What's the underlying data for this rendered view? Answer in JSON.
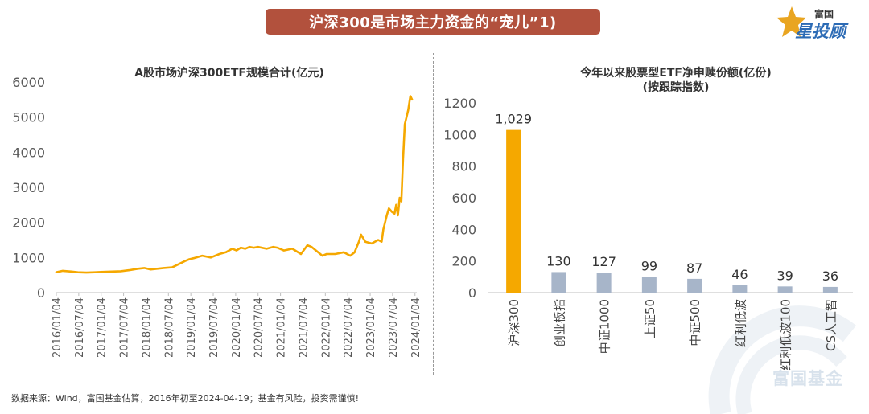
{
  "banner": {
    "title": "沪深300是市场主力资金的“宠儿”1)"
  },
  "logo": {
    "top": "富国",
    "main": "星投顾"
  },
  "watermark": {
    "text": "富国基金"
  },
  "footer": {
    "note": "数据来源：Wind，富国基金估算，2016年初至2024-04-19；基金有风险，投资需谨慎!"
  },
  "colors": {
    "line": "#f5a800",
    "bar_highlight": "#f5a800",
    "bar_other": "#a7b5c9",
    "banner": "#b2513d"
  },
  "chart_data": [
    {
      "type": "line",
      "title": "A股市场沪深300ETF规模合计(亿元)",
      "ylim": [
        0,
        6000
      ],
      "yticks": [
        "0",
        "1000",
        "2000",
        "3000",
        "4000",
        "5000",
        "6000"
      ],
      "xlim": [
        2016.0,
        2024.4
      ],
      "xticks": [
        "2016/01/04",
        "2016/07/04",
        "2017/01/04",
        "2017/07/04",
        "2018/01/04",
        "2018/07/04",
        "2019/01/04",
        "2019/07/04",
        "2020/01/04",
        "2020/07/04",
        "2021/01/04",
        "2021/07/04",
        "2022/01/04",
        "2022/07/04",
        "2023/01/04",
        "2023/07/04",
        "2024/01/04"
      ],
      "x": [
        2016.0,
        2016.15,
        2016.35,
        2016.5,
        2016.7,
        2016.9,
        2017.1,
        2017.3,
        2017.5,
        2017.7,
        2017.9,
        2018.05,
        2018.2,
        2018.35,
        2018.5,
        2018.7,
        2018.9,
        2019.0,
        2019.1,
        2019.2,
        2019.4,
        2019.6,
        2019.8,
        2019.95,
        2020.1,
        2020.2,
        2020.3,
        2020.4,
        2020.5,
        2020.6,
        2020.7,
        2020.9,
        2021.05,
        2021.15,
        2021.3,
        2021.5,
        2021.7,
        2021.85,
        2021.95,
        2022.05,
        2022.2,
        2022.3,
        2022.5,
        2022.7,
        2022.85,
        2022.95,
        2023.05,
        2023.1,
        2023.2,
        2023.35,
        2023.5,
        2023.58,
        2023.62,
        2023.7,
        2023.75,
        2023.82,
        2023.88,
        2023.92,
        2023.96,
        2024.0,
        2024.04,
        2024.08,
        2024.12,
        2024.16,
        2024.2,
        2024.25,
        2024.29
      ],
      "values": [
        580,
        620,
        600,
        580,
        570,
        580,
        590,
        600,
        610,
        640,
        680,
        700,
        660,
        680,
        700,
        720,
        840,
        900,
        950,
        980,
        1050,
        1000,
        1100,
        1150,
        1250,
        1200,
        1280,
        1250,
        1300,
        1280,
        1300,
        1250,
        1300,
        1280,
        1200,
        1250,
        1100,
        1350,
        1300,
        1200,
        1050,
        1100,
        1100,
        1150,
        1050,
        1150,
        1450,
        1650,
        1450,
        1400,
        1500,
        1450,
        1800,
        2200,
        2400,
        2300,
        2250,
        2500,
        2200,
        2700,
        2600,
        3800,
        4800,
        5000,
        5200,
        5600,
        5500
      ]
    },
    {
      "type": "bar",
      "title": "今年以来股票型ETF净申赎份额(亿份)",
      "subtitle": "(按跟踪指数)",
      "ylim": [
        0,
        1200
      ],
      "yticks": [
        "0",
        "200",
        "400",
        "600",
        "800",
        "1000",
        "1200"
      ],
      "categories": [
        "沪深300",
        "创业板指",
        "中证1000",
        "上证50",
        "中证500",
        "红利低波",
        "红利低波100",
        "CS人工智"
      ],
      "values": [
        1029,
        130,
        127,
        99,
        87,
        46,
        39,
        36
      ],
      "labels": [
        "1,029",
        "130",
        "127",
        "99",
        "87",
        "46",
        "39",
        "36"
      ]
    }
  ]
}
